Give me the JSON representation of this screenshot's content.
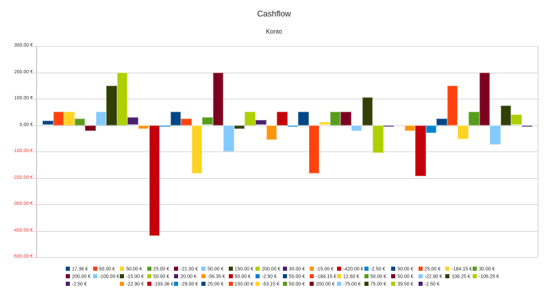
{
  "chart_data": {
    "type": "bar",
    "title": "Cashflow",
    "subtitle": "Konto",
    "xlabel": "",
    "ylabel": "",
    "ylim": [
      -500,
      300
    ],
    "y_ticks": [
      "300.00 €",
      "200.00 €",
      "100.00 €",
      "0.00 €",
      "-100.00 €",
      "-200.00 €",
      "-300.00 €",
      "-400.00 €",
      "-500.00 €"
    ],
    "y_tick_values": [
      300,
      200,
      100,
      0,
      -100,
      -200,
      -300,
      -400,
      -500
    ],
    "negative_label_color": "#ff3333",
    "grid": true,
    "legend_position": "bottom",
    "palette": [
      "#004586",
      "#ff420e",
      "#ffd320",
      "#579d1c",
      "#7e0021",
      "#83caff",
      "#314004",
      "#aecf00",
      "#4b1f6f",
      "#ff950e",
      "#c5000b",
      "#0084d1"
    ],
    "series": [
      {
        "name": "17.36 €",
        "value": 17.36,
        "color": "#004586"
      },
      {
        "name": "50.00 €",
        "value": 50.0,
        "color": "#ff420e"
      },
      {
        "name": "50.00 €",
        "value": 50.0,
        "color": "#ffd320"
      },
      {
        "name": "25.00 €",
        "value": 25.0,
        "color": "#579d1c"
      },
      {
        "name": "-21.00 €",
        "value": -21.0,
        "color": "#7e0021"
      },
      {
        "name": "50.00 €",
        "value": 50.0,
        "color": "#83caff"
      },
      {
        "name": "150.00 €",
        "value": 150.0,
        "color": "#314004"
      },
      {
        "name": "200.00 €",
        "value": 200.0,
        "color": "#aecf00"
      },
      {
        "name": "30.00 €",
        "value": 30.0,
        "color": "#4b1f6f"
      },
      {
        "name": "-15.00 €",
        "value": -15.0,
        "color": "#ff950e"
      },
      {
        "name": "-420.00 €",
        "value": -420.0,
        "color": "#c5000b"
      },
      {
        "name": "-2.50 €",
        "value": -2.5,
        "color": "#0084d1"
      },
      {
        "name": "50.00 €",
        "value": 50.0,
        "color": "#004586"
      },
      {
        "name": "25.00 €",
        "value": 25.0,
        "color": "#ff420e"
      },
      {
        "name": "-184.15 €",
        "value": -184.15,
        "color": "#ffd320"
      },
      {
        "name": "30.00 €",
        "value": 30.0,
        "color": "#579d1c"
      },
      {
        "name": "200.00 €",
        "value": 200.0,
        "color": "#7e0021"
      },
      {
        "name": "-100.00 €",
        "value": -100.0,
        "color": "#83caff"
      },
      {
        "name": "-15.00 €",
        "value": -15.0,
        "color": "#314004"
      },
      {
        "name": "50.00 €",
        "value": 50.0,
        "color": "#aecf00"
      },
      {
        "name": "20.00 €",
        "value": 20.0,
        "color": "#4b1f6f"
      },
      {
        "name": "-56.35 €",
        "value": -56.35,
        "color": "#ff950e"
      },
      {
        "name": "50.00 €",
        "value": 50.0,
        "color": "#c5000b"
      },
      {
        "name": "-2.50 €",
        "value": -2.5,
        "color": "#0084d1"
      },
      {
        "name": "50.00 €",
        "value": 50.0,
        "color": "#004586"
      },
      {
        "name": "-184.15 €",
        "value": -184.15,
        "color": "#ff420e"
      },
      {
        "name": "12.60 €",
        "value": 12.6,
        "color": "#ffd320"
      },
      {
        "name": "50.00 €",
        "value": 50.0,
        "color": "#579d1c"
      },
      {
        "name": "50.00 €",
        "value": 50.0,
        "color": "#7e0021"
      },
      {
        "name": "-22.90 €",
        "value": -22.9,
        "color": "#83caff"
      },
      {
        "name": "106.25 €",
        "value": 106.25,
        "color": "#314004"
      },
      {
        "name": "-106.25 €",
        "value": -106.25,
        "color": "#aecf00"
      },
      {
        "name": "-2.50 €",
        "value": -2.5,
        "color": "#4b1f6f"
      },
      {
        "name": "",
        "value": 0,
        "color": "#ffffff"
      },
      {
        "name": "-22.90 €",
        "value": -22.9,
        "color": "#ff950e"
      },
      {
        "name": "-193.36 €",
        "value": -193.36,
        "color": "#c5000b"
      },
      {
        "name": "-29.00 €",
        "value": -29.0,
        "color": "#0084d1"
      },
      {
        "name": "25.00 €",
        "value": 25.0,
        "color": "#004586"
      },
      {
        "name": "150.00 €",
        "value": 150.0,
        "color": "#ff420e"
      },
      {
        "name": "-53.15 €",
        "value": -53.15,
        "color": "#ffd320"
      },
      {
        "name": "50.00 €",
        "value": 50.0,
        "color": "#579d1c"
      },
      {
        "name": "200.00 €",
        "value": 200.0,
        "color": "#7e0021"
      },
      {
        "name": "-75.00 €",
        "value": -75.0,
        "color": "#83caff"
      },
      {
        "name": "75.00 €",
        "value": 75.0,
        "color": "#314004"
      },
      {
        "name": "39.50 €",
        "value": 39.5,
        "color": "#aecf00"
      },
      {
        "name": "-2.50 €",
        "value": -2.5,
        "color": "#4b1f6f"
      }
    ]
  }
}
